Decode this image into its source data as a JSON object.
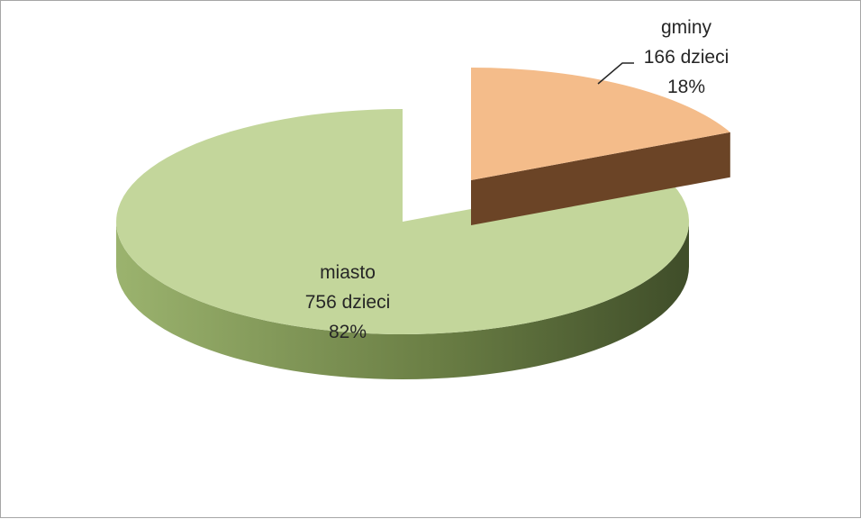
{
  "chart_data": {
    "type": "pie",
    "variant": "3d-exploded",
    "title": "",
    "slices": [
      {
        "name": "miasto",
        "value": 756,
        "unit_label": "756 dzieci",
        "percent_label": "82%",
        "top_color": "#c3d69b",
        "side_color_light": "#9bb36e",
        "side_color_dark": "#3f4d29"
      },
      {
        "name": "gminy",
        "value": 166,
        "unit_label": "166 dzieci",
        "percent_label": "18%",
        "top_color": "#f4bc8a",
        "side_color_light": "#7a4d2b",
        "side_color_dark": "#5e3a1e"
      }
    ],
    "legend": "none",
    "data_labels": "category, value, percent"
  }
}
